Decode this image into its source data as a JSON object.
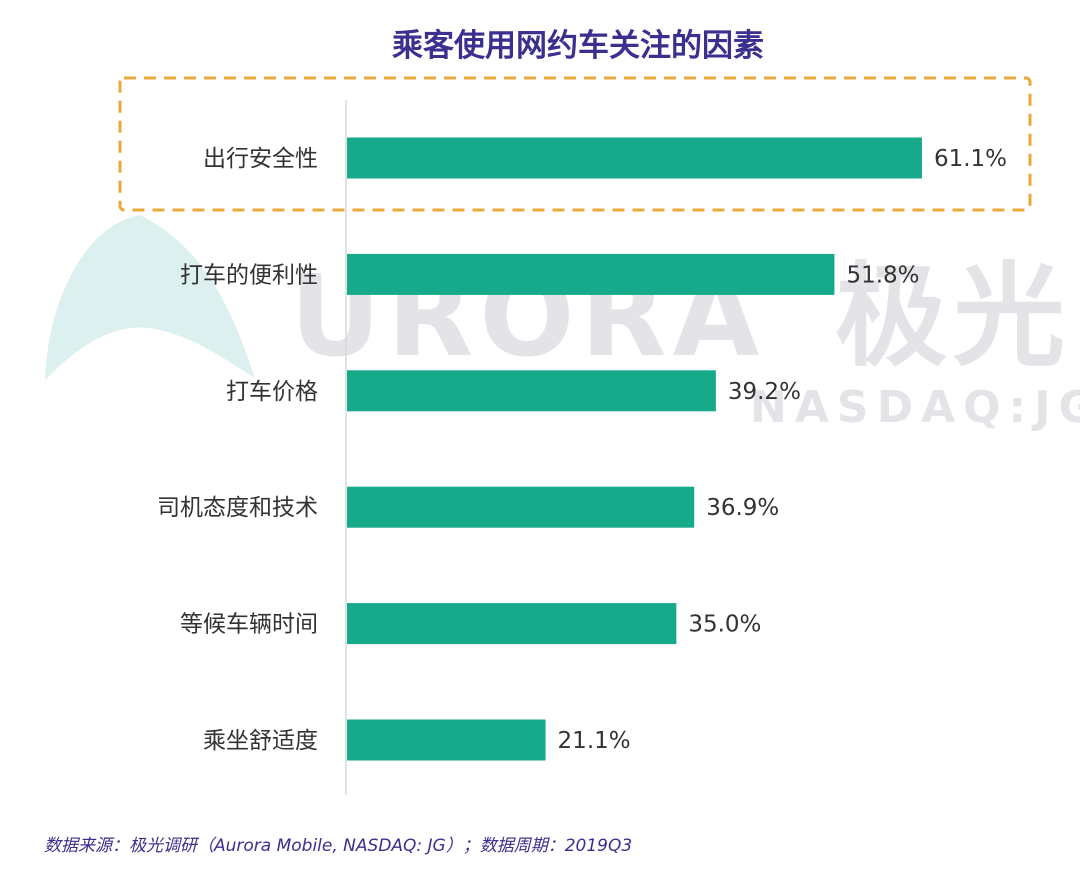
{
  "chart_data": {
    "type": "bar",
    "orientation": "horizontal",
    "title": "乘客使用网约车关注的因素",
    "categories": [
      "出行安全性",
      "打车的便利性",
      "打车价格",
      "司机态度和技术",
      "等候车辆时间",
      "乘坐舒适度"
    ],
    "values": [
      61.1,
      51.8,
      39.2,
      36.9,
      35.0,
      21.1
    ],
    "value_labels": [
      "61.1%",
      "51.8%",
      "39.2%",
      "36.9%",
      "35.0%",
      "21.1%"
    ],
    "value_unit": "%",
    "xlim": [
      0,
      70
    ],
    "grid": false,
    "legend": "none",
    "highlighted_category": "出行安全性",
    "bar_color": "#16a98a",
    "highlight_box_color": "#eaa83a",
    "title_color": "#3b2f8f"
  },
  "watermark": {
    "brand": "URORA",
    "brand_cn": "极光",
    "ticker": "NASDAQ:JG"
  },
  "source_text": "数据来源：极光调研（Aurora Mobile, NASDAQ: JG）；数据周期：2019Q3"
}
